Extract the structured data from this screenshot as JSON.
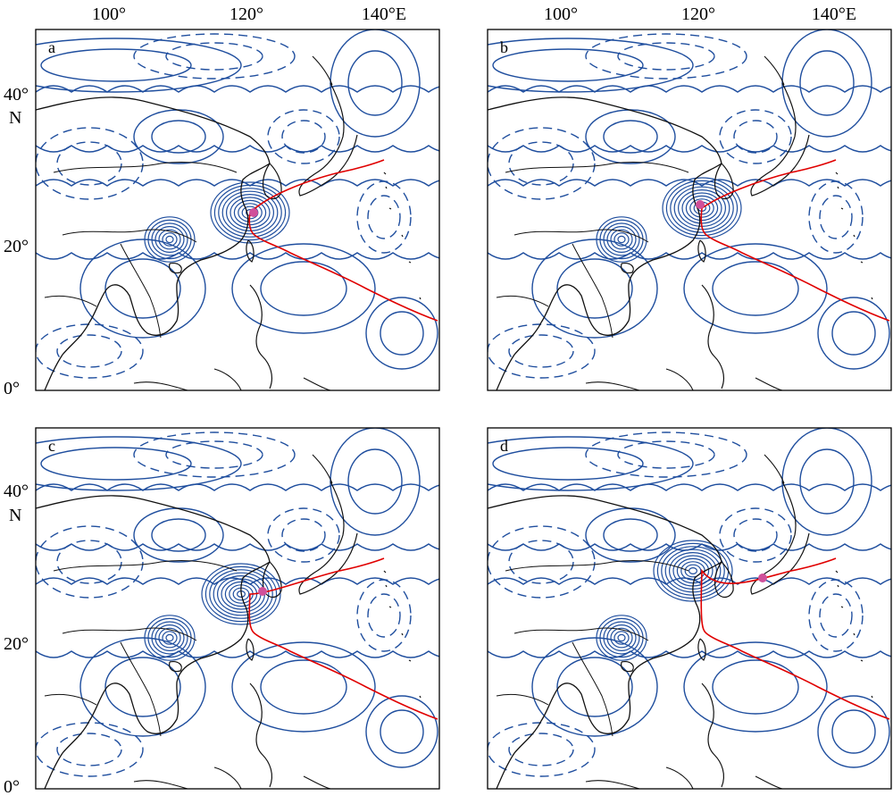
{
  "figure": {
    "colors": {
      "contour": "#1f4e9e",
      "track": "#e00000",
      "marker": "#d0509a",
      "coast": "#111111",
      "frame": "#000000"
    },
    "lon_labels": [
      "100°",
      "120°",
      "140°E"
    ],
    "lat_labels": [
      "40°",
      "N",
      "20°",
      "0°"
    ],
    "panels": [
      {
        "label": "a"
      },
      {
        "label": "b"
      },
      {
        "label": "c"
      },
      {
        "label": "d"
      }
    ]
  }
}
